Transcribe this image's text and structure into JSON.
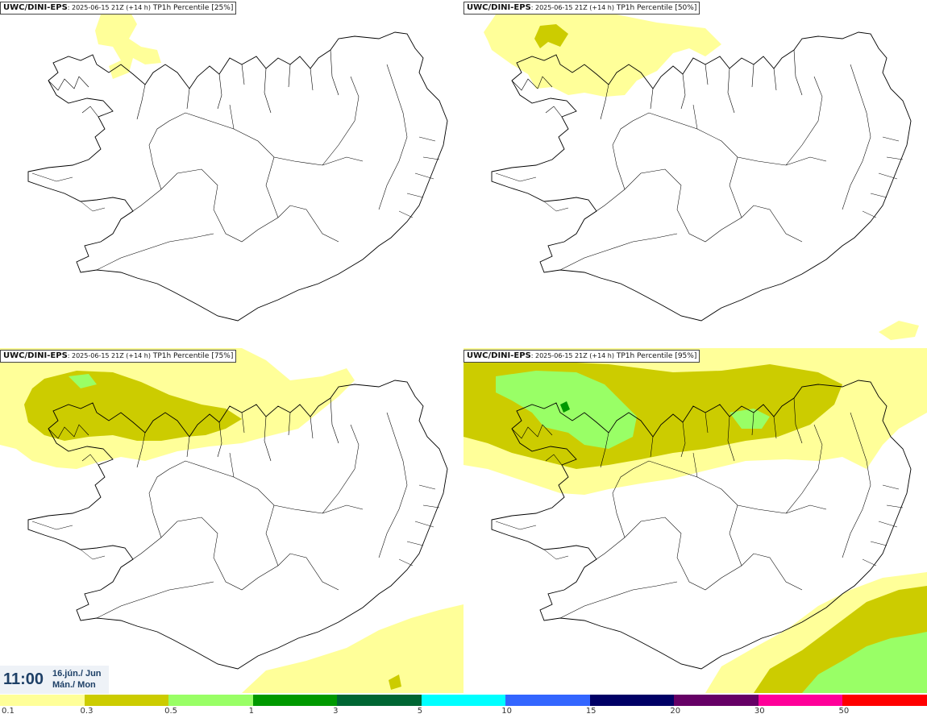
{
  "panels": [
    {
      "model": "UWC/DINI-EPS",
      "run": ": 2025-06-15 21Z (+14 h)",
      "param": " TP1h Percentile [25%]"
    },
    {
      "model": "UWC/DINI-EPS",
      "run": ": 2025-06-15 21Z (+14 h)",
      "param": " TP1h Percentile [50%]"
    },
    {
      "model": "UWC/DINI-EPS",
      "run": ": 2025-06-15 21Z (+14 h)",
      "param": " TP1h Percentile [75%]"
    },
    {
      "model": "UWC/DINI-EPS",
      "run": ": 2025-06-15 21Z (+14 h)",
      "param": " TP1h Percentile [95%]"
    }
  ],
  "valid_time": {
    "time": "11:00",
    "date_line1": "16.jún./ Jun",
    "date_line2": "Mán./ Mon"
  },
  "colorbar": {
    "colors": [
      "#ffff99",
      "#cccc00",
      "#99ff66",
      "#009900",
      "#006633",
      "#00ffff",
      "#3366ff",
      "#000066",
      "#660066",
      "#ff0099",
      "#ff0000"
    ],
    "ticks": [
      "0.1",
      "0.3",
      "0.5",
      "1",
      "3",
      "5",
      "10",
      "15",
      "20",
      "30",
      "50"
    ]
  }
}
